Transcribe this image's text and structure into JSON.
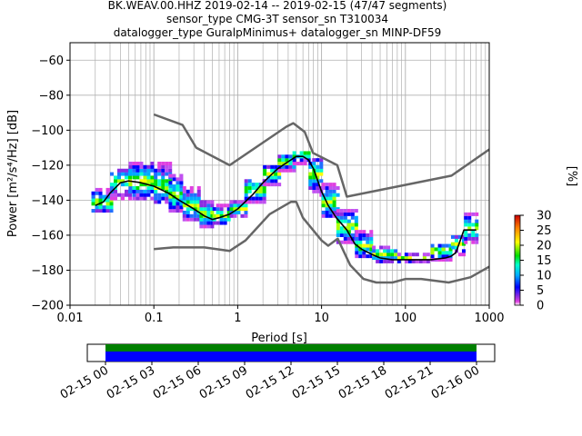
{
  "title_lines": [
    "BK.WEAV.00.HHZ   2019-02-14 -- 2019-02-15  (47/47 segments)",
    "sensor_type CMG-3T sensor_sn T310034",
    "datalogger_type GuralpMinimus+ datalogger_sn MINP-DF59"
  ],
  "chart_data": [
    {
      "type": "heatmap",
      "title": "BK.WEAV.00.HHZ   2019-02-14 -- 2019-02-15  (47/47 segments)",
      "xlabel": "Period [s]",
      "ylabel": "Power [m²/s⁴/Hz] [dB]",
      "x_scale": "log",
      "xlim": [
        0.01,
        1000
      ],
      "ylim": [
        -200,
        -50
      ],
      "x_ticks": [
        "0.01",
        "0.1",
        "1",
        "10",
        "100",
        "1000"
      ],
      "y_ticks": [
        "-60",
        "-80",
        "-100",
        "-120",
        "-140",
        "-160",
        "-180",
        "-200"
      ],
      "y_tick_values": [
        -60,
        -80,
        -100,
        -120,
        -140,
        -160,
        -180,
        -200
      ],
      "grid": true,
      "colorbar": {
        "label": "[%]",
        "range": [
          0,
          30
        ],
        "ticks": [
          "0",
          "5",
          "10",
          "15",
          "20",
          "25",
          "30"
        ]
      },
      "series": [
        {
          "id": "mode",
          "color": "#000000",
          "x": [
            0.02,
            0.025,
            0.03,
            0.04,
            0.05,
            0.07,
            0.1,
            0.15,
            0.2,
            0.3,
            0.4,
            0.5,
            0.6,
            0.8,
            1,
            1.5,
            2,
            3,
            4,
            5,
            6,
            7,
            8,
            10,
            12,
            15,
            20,
            25,
            30,
            40,
            50,
            70,
            100,
            150,
            200,
            300,
            350,
            400,
            500,
            600,
            700
          ],
          "y": [
            -143,
            -141,
            -136,
            -130,
            -129,
            -130,
            -132,
            -136,
            -140,
            -145,
            -149,
            -151,
            -150,
            -148,
            -145,
            -137,
            -130,
            -122,
            -118,
            -115,
            -115,
            -117,
            -122,
            -135,
            -143,
            -150,
            -157,
            -165,
            -168,
            -171,
            -173,
            -174,
            -174,
            -174,
            -174,
            -173,
            -172,
            -170,
            -157,
            -157,
            -157
          ]
        },
        {
          "id": "noise-model-high",
          "color": "#666666",
          "x": [
            0.1,
            0.22,
            0.32,
            0.8,
            3.8,
            4.6,
            6.3,
            7.9,
            15.4,
            20,
            354.8,
            1000
          ],
          "y": [
            -91,
            -97,
            -110,
            -120,
            -98,
            -96,
            -101,
            -113,
            -120,
            -138,
            -126,
            -111
          ]
        },
        {
          "id": "noise-model-low",
          "color": "#666666",
          "x": [
            0.1,
            0.17,
            0.4,
            0.8,
            1.24,
            2.4,
            4.3,
            5,
            6,
            10,
            12,
            15.6,
            21.9,
            31.6,
            45,
            70,
            101,
            154,
            328,
            600,
            1000
          ],
          "y": [
            -168,
            -167,
            -167,
            -169,
            -163,
            -148,
            -141,
            -141,
            -150,
            -163,
            -166,
            -162,
            -177,
            -185,
            -187,
            -187,
            -185,
            -185,
            -187,
            -184,
            -178
          ]
        }
      ],
      "density": [
        {
          "x0": 0.018,
          "x1": 0.03,
          "lo": -147,
          "hi": -133,
          "peak": -142
        },
        {
          "x0": 0.03,
          "x1": 0.05,
          "lo": -140,
          "hi": -122,
          "peak": -130
        },
        {
          "x0": 0.05,
          "x1": 0.1,
          "lo": -140,
          "hi": -118,
          "peak": -130
        },
        {
          "x0": 0.1,
          "x1": 0.15,
          "lo": -142,
          "hi": -119,
          "peak": -133
        },
        {
          "x0": 0.15,
          "x1": 0.22,
          "lo": -147,
          "hi": -126,
          "peak": -138
        },
        {
          "x0": 0.22,
          "x1": 0.35,
          "lo": -152,
          "hi": -133,
          "peak": -144
        },
        {
          "x0": 0.35,
          "x1": 0.5,
          "lo": -156,
          "hi": -140,
          "peak": -149
        },
        {
          "x0": 0.5,
          "x1": 0.8,
          "lo": -154,
          "hi": -143,
          "peak": -150
        },
        {
          "x0": 0.8,
          "x1": 1.2,
          "lo": -150,
          "hi": -140,
          "peak": -146
        },
        {
          "x0": 1.2,
          "x1": 2,
          "lo": -142,
          "hi": -128,
          "peak": -135
        },
        {
          "x0": 2,
          "x1": 3,
          "lo": -132,
          "hi": -120,
          "peak": -126
        },
        {
          "x0": 3,
          "x1": 4.5,
          "lo": -124,
          "hi": -114,
          "peak": -119
        },
        {
          "x0": 4.5,
          "x1": 7,
          "lo": -120,
          "hi": -112,
          "peak": -115
        },
        {
          "x0": 7,
          "x1": 10,
          "lo": -138,
          "hi": -117,
          "peak": -126
        },
        {
          "x0": 10,
          "x1": 15,
          "lo": -150,
          "hi": -130,
          "peak": -142
        },
        {
          "x0": 15,
          "x1": 25,
          "lo": -165,
          "hi": -146,
          "peak": -156
        },
        {
          "x0": 25,
          "x1": 40,
          "lo": -173,
          "hi": -158,
          "peak": -167
        },
        {
          "x0": 40,
          "x1": 80,
          "lo": -176,
          "hi": -166,
          "peak": -172
        },
        {
          "x0": 80,
          "x1": 200,
          "lo": -176,
          "hi": -171,
          "peak": -174
        },
        {
          "x0": 200,
          "x1": 350,
          "lo": -175,
          "hi": -165,
          "peak": -170
        },
        {
          "x0": 350,
          "x1": 500,
          "lo": -172,
          "hi": -160,
          "peak": -166
        },
        {
          "x0": 500,
          "x1": 700,
          "lo": -165,
          "hi": -148,
          "peak": -157
        }
      ]
    },
    {
      "type": "bar",
      "title": "",
      "x_ticks": [
        "02-15 00",
        "02-15 03",
        "02-15 06",
        "02-15 09",
        "02-15 12",
        "02-15 15",
        "02-15 18",
        "02-15 21",
        "02-16 00"
      ],
      "bars": [
        {
          "color": "#007f00",
          "start": "02-15 00",
          "end": "02-16 00"
        },
        {
          "color": "#0000ff",
          "start": "02-15 00",
          "end": "02-16 00"
        }
      ]
    }
  ]
}
